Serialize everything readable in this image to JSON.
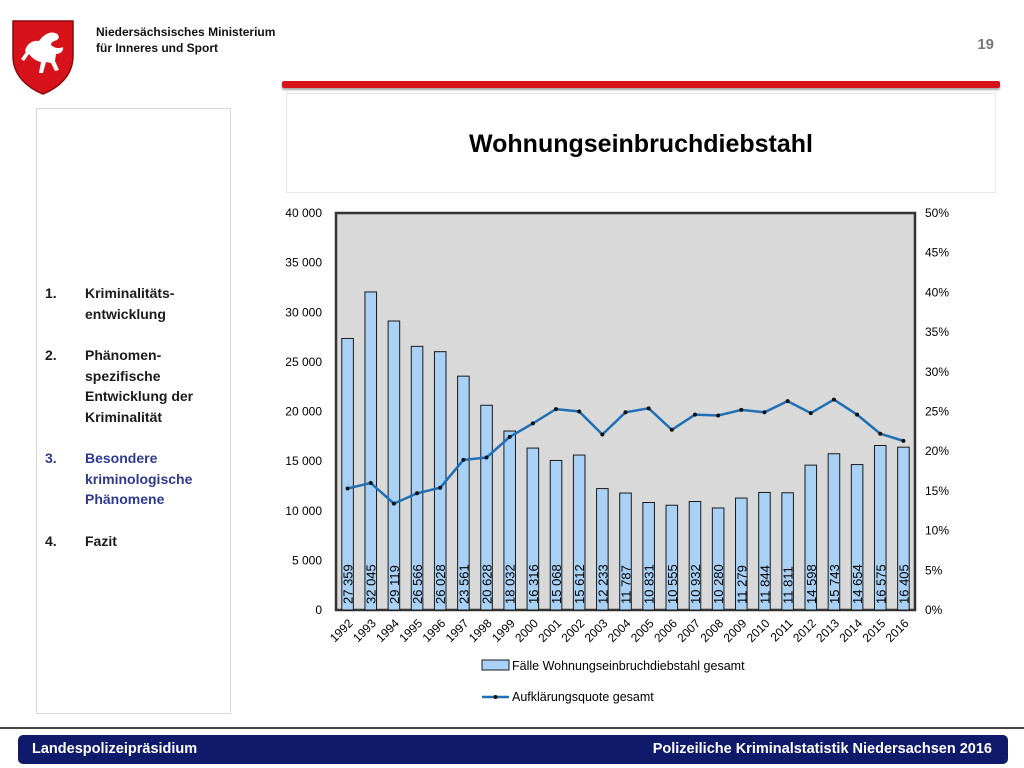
{
  "header": {
    "ministry_line1": "Niedersächsisches Ministerium",
    "ministry_line2": "für Inneres und Sport",
    "page_number": "19"
  },
  "slide": {
    "title": "Wohnungseinbruchdiebstahl"
  },
  "sidebar": {
    "items": [
      {
        "num": "1.",
        "label": "Kriminalitäts-\nentwicklung",
        "active": false
      },
      {
        "num": "2.",
        "label": "Phänomen-\nspezifische\nEntwicklung der\nKriminalität",
        "active": false
      },
      {
        "num": "3.",
        "label": "Besondere\nkriminologische\nPhänomene",
        "active": true
      },
      {
        "num": "4.",
        "label": "Fazit",
        "active": false
      }
    ]
  },
  "chart_data": {
    "type": "bar",
    "categories": [
      "1992",
      "1993",
      "1994",
      "1995",
      "1996",
      "1997",
      "1998",
      "1999",
      "2000",
      "2001",
      "2002",
      "2003",
      "2004",
      "2005",
      "2006",
      "2007",
      "2008",
      "2009",
      "2010",
      "2011",
      "2012",
      "2013",
      "2014",
      "2015",
      "2016"
    ],
    "series": [
      {
        "name": "Fälle Wohnungseinbruchdiebstahl gesamt",
        "type": "bar",
        "axis": "left",
        "values": [
          27359,
          32045,
          29119,
          26566,
          26028,
          23561,
          20628,
          18032,
          16316,
          15068,
          15612,
          12233,
          11787,
          10831,
          10555,
          10932,
          10280,
          11279,
          11844,
          11811,
          14598,
          15743,
          14654,
          16575,
          16405
        ],
        "labels": [
          "27 359",
          "32 045",
          "29 119",
          "26 566",
          "26 028",
          "23 561",
          "20 628",
          "18 032",
          "16 316",
          "15 068",
          "15 612",
          "12 233",
          "11 787",
          "10 831",
          "10 555",
          "10 932",
          "10 280",
          "11 279",
          "11 844",
          "11 811",
          "14 598",
          "15 743",
          "14 654",
          "16 575",
          "16 405"
        ]
      },
      {
        "name": "Aufklärungsquote gesamt",
        "type": "line",
        "axis": "right",
        "values": [
          15.3,
          16.0,
          13.4,
          14.7,
          15.4,
          18.9,
          19.2,
          21.8,
          23.5,
          25.3,
          25.0,
          22.1,
          24.9,
          25.4,
          22.7,
          24.6,
          24.5,
          25.2,
          24.9,
          26.3,
          24.8,
          26.5,
          24.6,
          22.2,
          21.3
        ]
      }
    ],
    "y_left": {
      "min": 0,
      "max": 40000,
      "ticks": [
        "0",
        "5 000",
        "10 000",
        "15 000",
        "20 000",
        "25 000",
        "30 000",
        "35 000",
        "40 000"
      ]
    },
    "y_right": {
      "min": 0,
      "max": 50,
      "ticks": [
        "0%",
        "5%",
        "10%",
        "15%",
        "20%",
        "25%",
        "30%",
        "35%",
        "40%",
        "45%",
        "50%"
      ]
    },
    "legend_position": "bottom",
    "colors": {
      "bar_fill": "#a9d0f5",
      "bar_stroke": "#1a1a1a",
      "line": "#1f6fb4",
      "plot_bg": "#d9d9d9",
      "frame": "#333333"
    }
  },
  "footer": {
    "left": "Landespolizeipräsidium",
    "right": "Polizeiliche Kriminalstatistik Niedersachsen 2016"
  }
}
